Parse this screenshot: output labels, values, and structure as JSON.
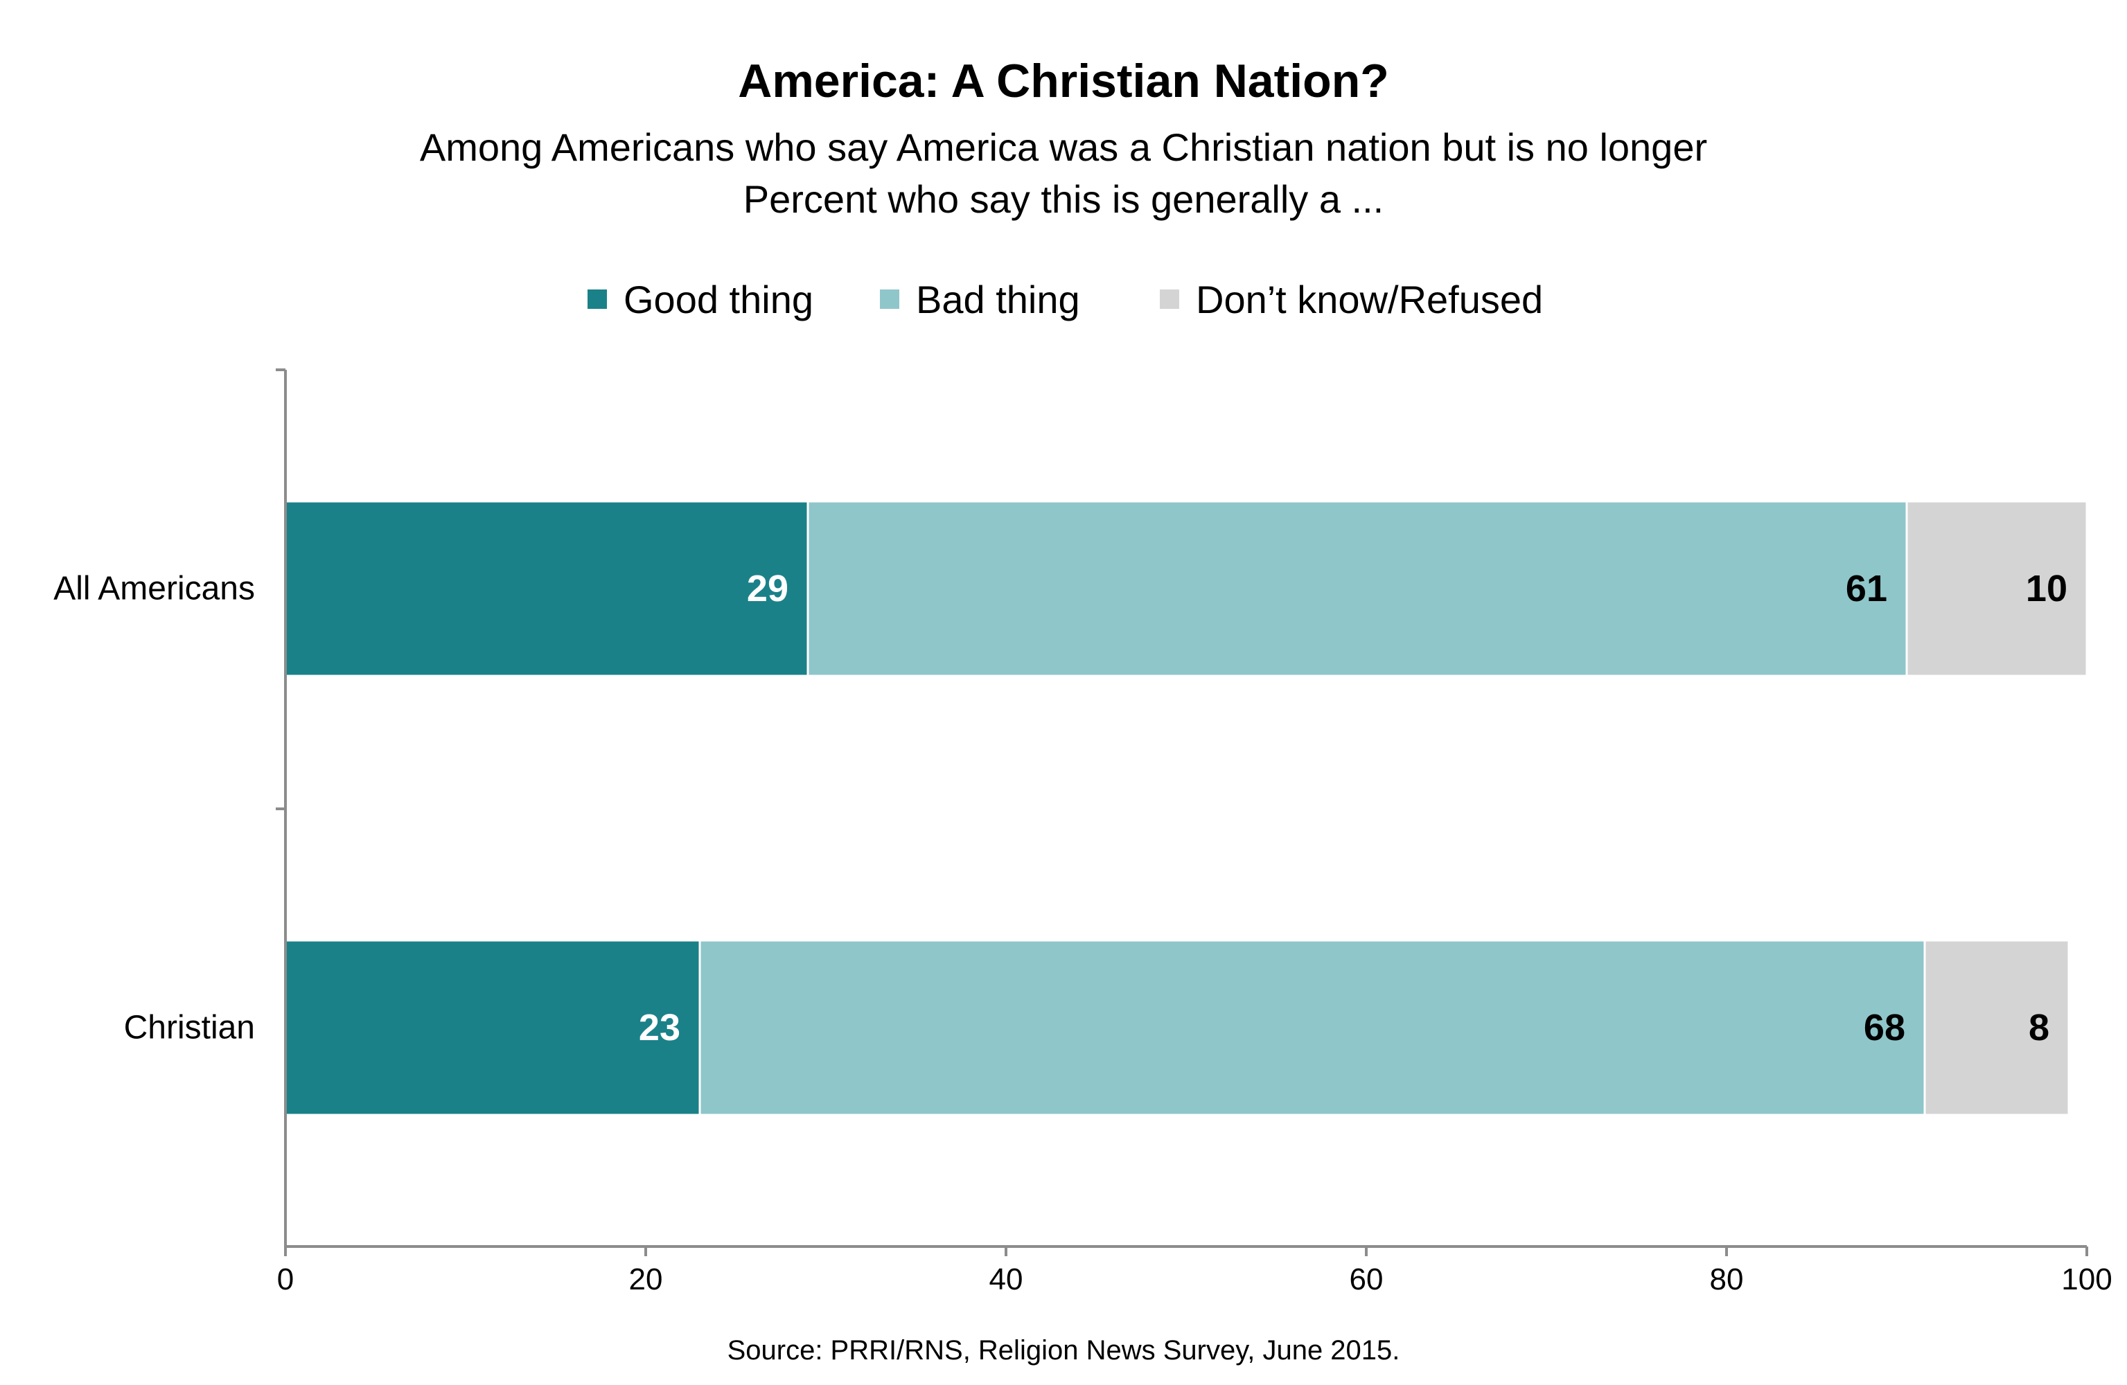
{
  "chart_data": {
    "type": "bar",
    "orientation": "horizontal",
    "stacked": true,
    "title": "America: A Christian Nation?",
    "subtitle": [
      "Among Americans who say America was a Christian nation but is no longer",
      "Percent who say this is generally a ..."
    ],
    "categories": [
      "All Americans",
      "Christian"
    ],
    "series": [
      {
        "name": "Good thing",
        "color": "#1a8189",
        "label_color": "#ffffff",
        "values": [
          29,
          23
        ]
      },
      {
        "name": "Bad thing",
        "color": "#8fc6ca",
        "label_color": "#000000",
        "values": [
          61,
          68
        ]
      },
      {
        "name": "Don’t know/Refused",
        "color": "#d4d4d4",
        "label_color": "#000000",
        "values": [
          10,
          8
        ]
      }
    ],
    "xlim": [
      0,
      100
    ],
    "xticks": [
      0,
      20,
      40,
      60,
      80,
      100
    ],
    "xlabel": "",
    "ylabel": "",
    "grid": false,
    "legend_position": "top-center",
    "source": "Source: PRRI/RNS, Religion News Survey, June 2015."
  }
}
